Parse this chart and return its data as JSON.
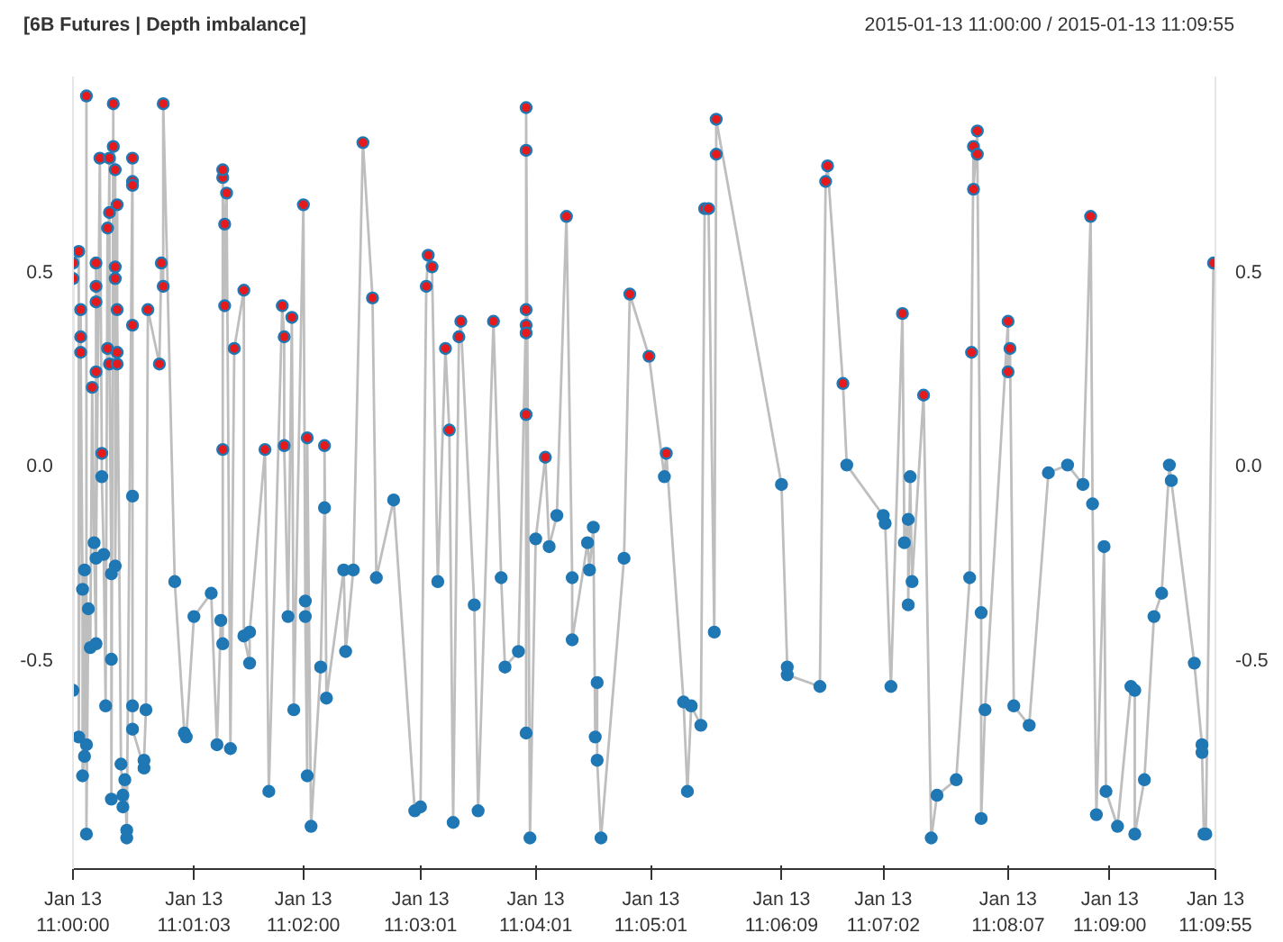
{
  "chart_data": {
    "type": "line",
    "title": "[6B Futures | Depth imbalance]",
    "subtitle": "2015-01-13 11:00:00 / 2015-01-13 11:09:55",
    "x": [
      "2015-01-13T11:00:00",
      "2015-01-13T11:00:00",
      "2015-01-13T11:00:00",
      "2015-01-13T11:00:03",
      "2015-01-13T11:00:03",
      "2015-01-13T11:00:04",
      "2015-01-13T11:00:04",
      "2015-01-13T11:00:04",
      "2015-01-13T11:00:05",
      "2015-01-13T11:00:05",
      "2015-01-13T11:00:06",
      "2015-01-13T11:00:06",
      "2015-01-13T11:00:07",
      "2015-01-13T11:00:07",
      "2015-01-13T11:00:07",
      "2015-01-13T11:00:08",
      "2015-01-13T11:00:09",
      "2015-01-13T11:00:10",
      "2015-01-13T11:00:11",
      "2015-01-13T11:00:12",
      "2015-01-13T11:00:12",
      "2015-01-13T11:00:12",
      "2015-01-13T11:00:12",
      "2015-01-13T11:00:12",
      "2015-01-13T11:00:12",
      "2015-01-13T11:00:14",
      "2015-01-13T11:00:15",
      "2015-01-13T11:00:15",
      "2015-01-13T11:00:16",
      "2015-01-13T11:00:17",
      "2015-01-13T11:00:18",
      "2015-01-13T11:00:18",
      "2015-01-13T11:00:19",
      "2015-01-13T11:00:19",
      "2015-01-13T11:00:19",
      "2015-01-13T11:00:20",
      "2015-01-13T11:00:20",
      "2015-01-13T11:00:20",
      "2015-01-13T11:00:21",
      "2015-01-13T11:00:21",
      "2015-01-13T11:00:22",
      "2015-01-13T11:00:22",
      "2015-01-13T11:00:22",
      "2015-01-13T11:00:22",
      "2015-01-13T11:00:23",
      "2015-01-13T11:00:23",
      "2015-01-13T11:00:23",
      "2015-01-13T11:00:23",
      "2015-01-13T11:00:25",
      "2015-01-13T11:00:26",
      "2015-01-13T11:00:26",
      "2015-01-13T11:00:27",
      "2015-01-13T11:00:28",
      "2015-01-13T11:00:28",
      "2015-01-13T11:00:31",
      "2015-01-13T11:00:31",
      "2015-01-13T11:00:31",
      "2015-01-13T11:00:31",
      "2015-01-13T11:00:31",
      "2015-01-13T11:00:31",
      "2015-01-13T11:00:31",
      "2015-01-13T11:00:37",
      "2015-01-13T11:00:37",
      "2015-01-13T11:00:38",
      "2015-01-13T11:00:39",
      "2015-01-13T11:00:45",
      "2015-01-13T11:00:46",
      "2015-01-13T11:00:47",
      "2015-01-13T11:00:47",
      "2015-01-13T11:00:53",
      "2015-01-13T11:00:58",
      "2015-01-13T11:00:59",
      "2015-01-13T11:01:03",
      "2015-01-13T11:01:12",
      "2015-01-13T11:01:15",
      "2015-01-13T11:01:17",
      "2015-01-13T11:01:18",
      "2015-01-13T11:01:18",
      "2015-01-13T11:01:18",
      "2015-01-13T11:01:18",
      "2015-01-13T11:01:19",
      "2015-01-13T11:01:19",
      "2015-01-13T11:01:20",
      "2015-01-13T11:01:22",
      "2015-01-13T11:01:24",
      "2015-01-13T11:01:29",
      "2015-01-13T11:01:29",
      "2015-01-13T11:01:32",
      "2015-01-13T11:01:32",
      "2015-01-13T11:01:40",
      "2015-01-13T11:01:42",
      "2015-01-13T11:01:49",
      "2015-01-13T11:01:50",
      "2015-01-13T11:01:50",
      "2015-01-13T11:01:52",
      "2015-01-13T11:01:54",
      "2015-01-13T11:01:55",
      "2015-01-13T11:02:00",
      "2015-01-13T11:02:01",
      "2015-01-13T11:02:01",
      "2015-01-13T11:02:02",
      "2015-01-13T11:02:02",
      "2015-01-13T11:02:04",
      "2015-01-13T11:02:09",
      "2015-01-13T11:02:11",
      "2015-01-13T11:02:11",
      "2015-01-13T11:02:12",
      "2015-01-13T11:02:21",
      "2015-01-13T11:02:22",
      "2015-01-13T11:02:26",
      "2015-01-13T11:02:31",
      "2015-01-13T11:02:36",
      "2015-01-13T11:02:38",
      "2015-01-13T11:02:47",
      "2015-01-13T11:02:58",
      "2015-01-13T11:03:01",
      "2015-01-13T11:03:04",
      "2015-01-13T11:03:05",
      "2015-01-13T11:03:07",
      "2015-01-13T11:03:10",
      "2015-01-13T11:03:14",
      "2015-01-13T11:03:16",
      "2015-01-13T11:03:18",
      "2015-01-13T11:03:21",
      "2015-01-13T11:03:22",
      "2015-01-13T11:03:29",
      "2015-01-13T11:03:31",
      "2015-01-13T11:03:39",
      "2015-01-13T11:03:43",
      "2015-01-13T11:03:45",
      "2015-01-13T11:03:52",
      "2015-01-13T11:03:56",
      "2015-01-13T11:03:56",
      "2015-01-13T11:03:56",
      "2015-01-13T11:03:56",
      "2015-01-13T11:03:56",
      "2015-01-13T11:03:56",
      "2015-01-13T11:03:56",
      "2015-01-13T11:03:58",
      "2015-01-13T11:04:01",
      "2015-01-13T11:04:06",
      "2015-01-13T11:04:08",
      "2015-01-13T11:04:12",
      "2015-01-13T11:04:17",
      "2015-01-13T11:04:20",
      "2015-01-13T11:04:20",
      "2015-01-13T11:04:28",
      "2015-01-13T11:04:29",
      "2015-01-13T11:04:31",
      "2015-01-13T11:04:32",
      "2015-01-13T11:04:33",
      "2015-01-13T11:04:33",
      "2015-01-13T11:04:35",
      "2015-01-13T11:04:47",
      "2015-01-13T11:04:50",
      "2015-01-13T11:05:00",
      "2015-01-13T11:05:08",
      "2015-01-13T11:05:09",
      "2015-01-13T11:05:18",
      "2015-01-13T11:05:20",
      "2015-01-13T11:05:22",
      "2015-01-13T11:05:27",
      "2015-01-13T11:05:29",
      "2015-01-13T11:05:31",
      "2015-01-13T11:05:34",
      "2015-01-13T11:05:35",
      "2015-01-13T11:05:35",
      "2015-01-13T11:06:09",
      "2015-01-13T11:06:12",
      "2015-01-13T11:06:12",
      "2015-01-13T11:06:29",
      "2015-01-13T11:06:32",
      "2015-01-13T11:06:33",
      "2015-01-13T11:06:41",
      "2015-01-13T11:06:43",
      "2015-01-13T11:07:02",
      "2015-01-13T11:07:03",
      "2015-01-13T11:07:06",
      "2015-01-13T11:07:12",
      "2015-01-13T11:07:13",
      "2015-01-13T11:07:15",
      "2015-01-13T11:07:15",
      "2015-01-13T11:07:16",
      "2015-01-13T11:07:17",
      "2015-01-13T11:07:23",
      "2015-01-13T11:07:27",
      "2015-01-13T11:07:30",
      "2015-01-13T11:07:40",
      "2015-01-13T11:07:47",
      "2015-01-13T11:07:48",
      "2015-01-13T11:07:49",
      "2015-01-13T11:07:49",
      "2015-01-13T11:07:51",
      "2015-01-13T11:07:51",
      "2015-01-13T11:07:53",
      "2015-01-13T11:07:53",
      "2015-01-13T11:07:55",
      "2015-01-13T11:08:07",
      "2015-01-13T11:08:07",
      "2015-01-13T11:08:08",
      "2015-01-13T11:08:10",
      "2015-01-13T11:08:18",
      "2015-01-13T11:08:28",
      "2015-01-13T11:08:38",
      "2015-01-13T11:08:46",
      "2015-01-13T11:08:50",
      "2015-01-13T11:08:51",
      "2015-01-13T11:08:53",
      "2015-01-13T11:08:57",
      "2015-01-13T11:08:58",
      "2015-01-13T11:09:04",
      "2015-01-13T11:09:11",
      "2015-01-13T11:09:13",
      "2015-01-13T11:09:13",
      "2015-01-13T11:09:18",
      "2015-01-13T11:09:23",
      "2015-01-13T11:09:27",
      "2015-01-13T11:09:31",
      "2015-01-13T11:09:32",
      "2015-01-13T11:09:44",
      "2015-01-13T11:09:48",
      "2015-01-13T11:09:48",
      "2015-01-13T11:09:49",
      "2015-01-13T11:09:50",
      "2015-01-13T11:09:54"
    ],
    "xlim": [
      "2015-01-13T11:00:00",
      "2015-01-13T11:09:55"
    ],
    "xticks": [
      {
        "value": "2015-01-13T11:00:00",
        "label": "Jan 13\n11:00:00"
      },
      {
        "value": "2015-01-13T11:01:03",
        "label": "Jan 13\n11:01:03"
      },
      {
        "value": "2015-01-13T11:02:00",
        "label": "Jan 13\n11:02:00"
      },
      {
        "value": "2015-01-13T11:03:01",
        "label": "Jan 13\n11:03:01"
      },
      {
        "value": "2015-01-13T11:04:01",
        "label": "Jan 13\n11:04:01"
      },
      {
        "value": "2015-01-13T11:05:01",
        "label": "Jan 13\n11:05:01"
      },
      {
        "value": "2015-01-13T11:06:09",
        "label": "Jan 13\n11:06:09"
      },
      {
        "value": "2015-01-13T11:07:02",
        "label": "Jan 13\n11:07:02"
      },
      {
        "value": "2015-01-13T11:08:07",
        "label": "Jan 13\n11:08:07"
      },
      {
        "value": "2015-01-13T11:09:00",
        "label": "Jan 13\n11:09:00"
      },
      {
        "value": "2015-01-13T11:09:55",
        "label": "Jan 13\n11:09:55"
      }
    ],
    "ylim": [
      -1.04,
      1.0
    ],
    "yticks": [
      {
        "value": -0.5,
        "label": "-0.5"
      },
      {
        "value": 0,
        "label": "0.0"
      },
      {
        "value": 0.5,
        "label": "0.5"
      }
    ],
    "y2lim": [
      -1.04,
      1.0
    ],
    "y2ticks": [
      {
        "value": -0.5,
        "label": "-0.5"
      },
      {
        "value": 0,
        "label": "0.0"
      },
      {
        "value": 0.5,
        "label": "0.5"
      }
    ],
    "line_style": "solid",
    "series": [
      {
        "color": "#bebebe",
        "marker": "none",
        "values": [
          -0.58,
          0.48,
          0.52,
          0.55,
          -0.7,
          0.4,
          0.33,
          0.29,
          -0.32,
          -0.8,
          -0.75,
          -0.27,
          -0.72,
          0.95,
          -0.95,
          -0.37,
          -0.47,
          0.2,
          -0.2,
          -0.46,
          0.24,
          0.42,
          0.46,
          0.52,
          -0.24,
          0.79,
          0.03,
          -0.03,
          -0.23,
          -0.62,
          0.61,
          0.3,
          0.79,
          0.65,
          0.26,
          -0.28,
          -0.5,
          -0.86,
          0.93,
          0.82,
          0.76,
          0.51,
          0.48,
          -0.26,
          0.29,
          0.26,
          0.67,
          0.4,
          -0.77,
          -0.85,
          -0.88,
          -0.81,
          -0.94,
          -0.96,
          0.79,
          0.73,
          0.72,
          0.36,
          -0.08,
          -0.62,
          -0.68,
          -0.78,
          -0.76,
          -0.63,
          0.4,
          0.26,
          0.52,
          0.46,
          0.93,
          -0.3,
          -0.69,
          -0.7,
          -0.39,
          -0.33,
          -0.72,
          -0.4,
          -0.46,
          0.04,
          0.74,
          0.76,
          0.41,
          0.62,
          0.7,
          -0.73,
          0.3,
          0.45,
          -0.44,
          -0.51,
          -0.43,
          0.04,
          -0.84,
          0.41,
          0.33,
          0.05,
          -0.39,
          0.38,
          -0.63,
          0.67,
          -0.35,
          -0.39,
          -0.8,
          0.07,
          -0.93,
          -0.52,
          -0.11,
          0.05,
          -0.6,
          -0.27,
          -0.48,
          -0.27,
          0.83,
          0.43,
          -0.29,
          -0.09,
          -0.89,
          -0.88,
          0.46,
          0.54,
          0.51,
          -0.3,
          0.3,
          0.09,
          -0.92,
          0.33,
          0.37,
          -0.36,
          -0.89,
          0.37,
          -0.29,
          -0.52,
          -0.48,
          0.4,
          0.36,
          0.34,
          0.13,
          -0.69,
          0.81,
          0.92,
          -0.96,
          -0.19,
          0.02,
          -0.21,
          -0.13,
          0.64,
          -0.29,
          -0.45,
          -0.2,
          -0.27,
          -0.16,
          -0.7,
          -0.56,
          -0.76,
          -0.96,
          -0.24,
          0.44,
          0.28,
          -0.03,
          0.03,
          -0.61,
          -0.84,
          -0.62,
          -0.67,
          0.66,
          0.66,
          -0.43,
          0.8,
          0.89,
          -0.05,
          -0.52,
          -0.54,
          -0.57,
          0.73,
          0.77,
          0.21,
          0.0,
          -0.13,
          -0.15,
          -0.57,
          0.39,
          -0.2,
          -0.14,
          -0.36,
          -0.03,
          -0.3,
          0.18,
          -0.96,
          -0.85,
          -0.81,
          -0.29,
          0.29,
          0.82,
          0.71,
          0.86,
          0.8,
          -0.38,
          -0.91,
          -0.63,
          0.37,
          0.24,
          0.3,
          -0.62,
          -0.67,
          -0.02,
          0.0,
          -0.05,
          0.64,
          -0.1,
          -0.9,
          -0.21,
          -0.84,
          -0.93,
          -0.57,
          -0.58,
          -0.95,
          -0.81,
          -0.39,
          -0.33,
          0.0,
          -0.04,
          -0.51,
          -0.72,
          -0.74,
          -0.95,
          -0.95,
          0.52
        ]
      },
      {
        "type": "scatter",
        "color": "#1f77b4",
        "marker": "circle",
        "values": [
          -0.58,
          0.48,
          0.52,
          0.55,
          -0.7,
          0.4,
          0.33,
          0.29,
          -0.32,
          -0.8,
          -0.75,
          -0.27,
          -0.72,
          0.95,
          -0.95,
          -0.37,
          -0.47,
          0.2,
          -0.2,
          -0.46,
          0.24,
          0.42,
          0.46,
          0.52,
          -0.24,
          0.79,
          0.03,
          -0.03,
          -0.23,
          -0.62,
          0.61,
          0.3,
          0.79,
          0.65,
          0.26,
          -0.28,
          -0.5,
          -0.86,
          0.93,
          0.82,
          0.76,
          0.51,
          0.48,
          -0.26,
          0.29,
          0.26,
          0.67,
          0.4,
          -0.77,
          -0.85,
          -0.88,
          -0.81,
          -0.94,
          -0.96,
          0.79,
          0.73,
          0.72,
          0.36,
          -0.08,
          -0.62,
          -0.68,
          -0.78,
          -0.76,
          -0.63,
          0.4,
          0.26,
          0.52,
          0.46,
          0.93,
          -0.3,
          -0.69,
          -0.7,
          -0.39,
          -0.33,
          -0.72,
          -0.4,
          -0.46,
          0.04,
          0.74,
          0.76,
          0.41,
          0.62,
          0.7,
          -0.73,
          0.3,
          0.45,
          -0.44,
          -0.51,
          -0.43,
          0.04,
          -0.84,
          0.41,
          0.33,
          0.05,
          -0.39,
          0.38,
          -0.63,
          0.67,
          -0.35,
          -0.39,
          -0.8,
          0.07,
          -0.93,
          -0.52,
          -0.11,
          0.05,
          -0.6,
          -0.27,
          -0.48,
          -0.27,
          0.83,
          0.43,
          -0.29,
          -0.09,
          -0.89,
          -0.88,
          0.46,
          0.54,
          0.51,
          -0.3,
          0.3,
          0.09,
          -0.92,
          0.33,
          0.37,
          -0.36,
          -0.89,
          0.37,
          -0.29,
          -0.52,
          -0.48,
          0.4,
          0.36,
          0.34,
          0.13,
          -0.69,
          0.81,
          0.92,
          -0.96,
          -0.19,
          0.02,
          -0.21,
          -0.13,
          0.64,
          -0.29,
          -0.45,
          -0.2,
          -0.27,
          -0.16,
          -0.7,
          -0.56,
          -0.76,
          -0.96,
          -0.24,
          0.44,
          0.28,
          -0.03,
          0.03,
          -0.61,
          -0.84,
          -0.62,
          -0.67,
          0.66,
          0.66,
          -0.43,
          0.8,
          0.89,
          -0.05,
          -0.52,
          -0.54,
          -0.57,
          0.73,
          0.77,
          0.21,
          0.0,
          -0.13,
          -0.15,
          -0.57,
          0.39,
          -0.2,
          -0.14,
          -0.36,
          -0.03,
          -0.3,
          0.18,
          -0.96,
          -0.85,
          -0.81,
          -0.29,
          0.29,
          0.82,
          0.71,
          0.86,
          0.8,
          -0.38,
          -0.91,
          -0.63,
          0.37,
          0.24,
          0.3,
          -0.62,
          -0.67,
          -0.02,
          0.0,
          -0.05,
          0.64,
          -0.1,
          -0.9,
          -0.21,
          -0.84,
          -0.93,
          -0.57,
          -0.58,
          -0.95,
          -0.81,
          -0.39,
          -0.33,
          0.0,
          -0.04,
          -0.51,
          -0.72,
          -0.74,
          -0.95,
          -0.95,
          0.52
        ],
        "colors": [
          "#1f77b4",
          "#e41a1c",
          "#e41a1c",
          "#e41a1c",
          "#1f77b4",
          "#e41a1c",
          "#e41a1c",
          "#e41a1c",
          "#1f77b4",
          "#1f77b4",
          "#1f77b4",
          "#1f77b4",
          "#1f77b4",
          "#e41a1c",
          "#1f77b4",
          "#1f77b4",
          "#1f77b4",
          "#e41a1c",
          "#1f77b4",
          "#1f77b4",
          "#e41a1c",
          "#e41a1c",
          "#e41a1c",
          "#e41a1c",
          "#1f77b4",
          "#e41a1c",
          "#e41a1c",
          "#1f77b4",
          "#1f77b4",
          "#1f77b4",
          "#e41a1c",
          "#e41a1c",
          "#e41a1c",
          "#e41a1c",
          "#e41a1c",
          "#1f77b4",
          "#1f77b4",
          "#1f77b4",
          "#e41a1c",
          "#e41a1c",
          "#e41a1c",
          "#e41a1c",
          "#e41a1c",
          "#1f77b4",
          "#e41a1c",
          "#e41a1c",
          "#e41a1c",
          "#e41a1c",
          "#1f77b4",
          "#1f77b4",
          "#1f77b4",
          "#1f77b4",
          "#1f77b4",
          "#1f77b4",
          "#e41a1c",
          "#e41a1c",
          "#e41a1c",
          "#e41a1c",
          "#1f77b4",
          "#1f77b4",
          "#1f77b4",
          "#1f77b4",
          "#1f77b4",
          "#1f77b4",
          "#e41a1c",
          "#e41a1c",
          "#e41a1c",
          "#e41a1c",
          "#e41a1c",
          "#1f77b4",
          "#1f77b4",
          "#1f77b4",
          "#1f77b4",
          "#1f77b4",
          "#1f77b4",
          "#1f77b4",
          "#1f77b4",
          "#e41a1c",
          "#e41a1c",
          "#e41a1c",
          "#e41a1c",
          "#e41a1c",
          "#e41a1c",
          "#1f77b4",
          "#e41a1c",
          "#e41a1c",
          "#1f77b4",
          "#1f77b4",
          "#1f77b4",
          "#e41a1c",
          "#1f77b4",
          "#e41a1c",
          "#e41a1c",
          "#e41a1c",
          "#1f77b4",
          "#e41a1c",
          "#1f77b4",
          "#e41a1c",
          "#1f77b4",
          "#1f77b4",
          "#1f77b4",
          "#e41a1c",
          "#1f77b4",
          "#1f77b4",
          "#1f77b4",
          "#e41a1c",
          "#1f77b4",
          "#1f77b4",
          "#1f77b4",
          "#1f77b4",
          "#e41a1c",
          "#e41a1c",
          "#1f77b4",
          "#1f77b4",
          "#1f77b4",
          "#1f77b4",
          "#e41a1c",
          "#e41a1c",
          "#e41a1c",
          "#1f77b4",
          "#e41a1c",
          "#e41a1c",
          "#1f77b4",
          "#e41a1c",
          "#e41a1c",
          "#1f77b4",
          "#1f77b4",
          "#e41a1c",
          "#1f77b4",
          "#1f77b4",
          "#1f77b4",
          "#e41a1c",
          "#e41a1c",
          "#e41a1c",
          "#e41a1c",
          "#1f77b4",
          "#e41a1c",
          "#e41a1c",
          "#1f77b4",
          "#1f77b4",
          "#e41a1c",
          "#1f77b4",
          "#1f77b4",
          "#e41a1c",
          "#1f77b4",
          "#1f77b4",
          "#1f77b4",
          "#1f77b4",
          "#1f77b4",
          "#1f77b4",
          "#1f77b4",
          "#1f77b4",
          "#1f77b4",
          "#1f77b4",
          "#e41a1c",
          "#e41a1c",
          "#1f77b4",
          "#e41a1c",
          "#1f77b4",
          "#1f77b4",
          "#1f77b4",
          "#1f77b4",
          "#e41a1c",
          "#e41a1c",
          "#1f77b4",
          "#e41a1c",
          "#e41a1c",
          "#1f77b4",
          "#1f77b4",
          "#1f77b4",
          "#1f77b4",
          "#e41a1c",
          "#e41a1c",
          "#e41a1c",
          "#1f77b4",
          "#1f77b4",
          "#1f77b4",
          "#1f77b4",
          "#e41a1c",
          "#1f77b4",
          "#1f77b4",
          "#1f77b4",
          "#1f77b4",
          "#1f77b4",
          "#e41a1c",
          "#1f77b4",
          "#1f77b4",
          "#1f77b4",
          "#1f77b4",
          "#e41a1c",
          "#e41a1c",
          "#e41a1c",
          "#e41a1c",
          "#e41a1c",
          "#1f77b4",
          "#1f77b4",
          "#1f77b4",
          "#e41a1c",
          "#e41a1c",
          "#e41a1c",
          "#1f77b4",
          "#1f77b4",
          "#1f77b4",
          "#1f77b4",
          "#1f77b4",
          "#e41a1c",
          "#1f77b4",
          "#1f77b4",
          "#1f77b4",
          "#1f77b4",
          "#1f77b4",
          "#1f77b4",
          "#1f77b4",
          "#1f77b4",
          "#1f77b4",
          "#1f77b4",
          "#1f77b4",
          "#1f77b4",
          "#1f77b4",
          "#1f77b4",
          "#1f77b4",
          "#1f77b4",
          "#1f77b4",
          "#1f77b4",
          "#e41a1c"
        ]
      }
    ]
  }
}
